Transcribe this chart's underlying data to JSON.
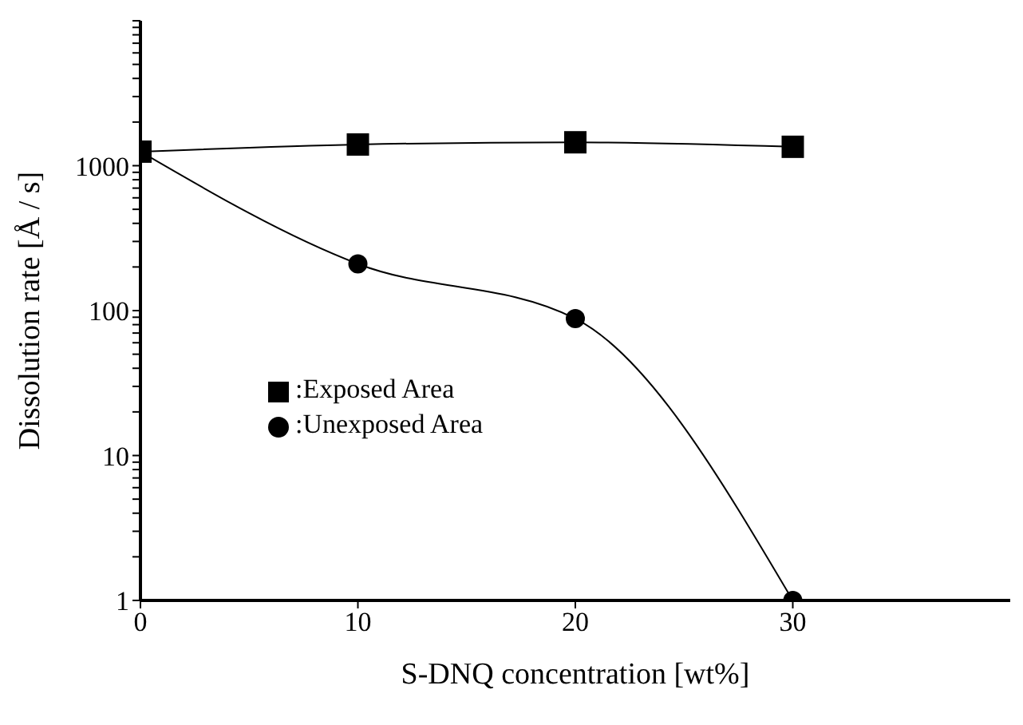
{
  "chart_data": {
    "type": "line",
    "xlabel": "S-DNQ concentration [wt%]",
    "ylabel": "Dissolution rate [Å / s]",
    "x": [
      0,
      10,
      20,
      30
    ],
    "series": [
      {
        "name": ":Exposed Area",
        "color": "#000000",
        "marker": "square",
        "values": [
          1250,
          1400,
          1450,
          1350
        ]
      },
      {
        "name": ":Unexposed Area",
        "color": "#000000",
        "marker": "circle",
        "values": [
          1250,
          210,
          88,
          1
        ]
      }
    ],
    "xlim": [
      0,
      40
    ],
    "xticks": [
      0,
      10,
      20,
      30
    ],
    "ylim": [
      1,
      10000
    ],
    "log": "y",
    "yticks": [
      1,
      {
        "value": 2,
        "label": null
      },
      {
        "value": 3,
        "label": null
      },
      {
        "value": 4,
        "label": null
      },
      {
        "value": 5,
        "label": null
      },
      {
        "value": 6,
        "label": null
      },
      {
        "value": 7,
        "label": null
      },
      {
        "value": 8,
        "label": null
      },
      {
        "value": 9,
        "label": null
      },
      10,
      {
        "value": 20,
        "label": null
      },
      {
        "value": 30,
        "label": null
      },
      {
        "value": 40,
        "label": null
      },
      {
        "value": 50,
        "label": null
      },
      {
        "value": 60,
        "label": null
      },
      {
        "value": 70,
        "label": null
      },
      {
        "value": 80,
        "label": null
      },
      {
        "value": 90,
        "label": null
      },
      100,
      {
        "value": 200,
        "label": null
      },
      {
        "value": 300,
        "label": null
      },
      {
        "value": 400,
        "label": null
      },
      {
        "value": 500,
        "label": null
      },
      {
        "value": 600,
        "label": null
      },
      {
        "value": 700,
        "label": null
      },
      {
        "value": 800,
        "label": null
      },
      {
        "value": 900,
        "label": null
      },
      1000,
      {
        "value": 2000,
        "label": null
      },
      {
        "value": 3000,
        "label": null
      },
      {
        "value": 4000,
        "label": null
      },
      {
        "value": 5000,
        "label": null
      },
      {
        "value": 6000,
        "label": null
      },
      {
        "value": 7000,
        "label": null
      },
      {
        "value": 8000,
        "label": null
      },
      {
        "value": 9000,
        "label": null
      },
      {
        "value": 10000,
        "label": null
      }
    ],
    "grid": false,
    "legend": "left",
    "line_style": "solid"
  }
}
